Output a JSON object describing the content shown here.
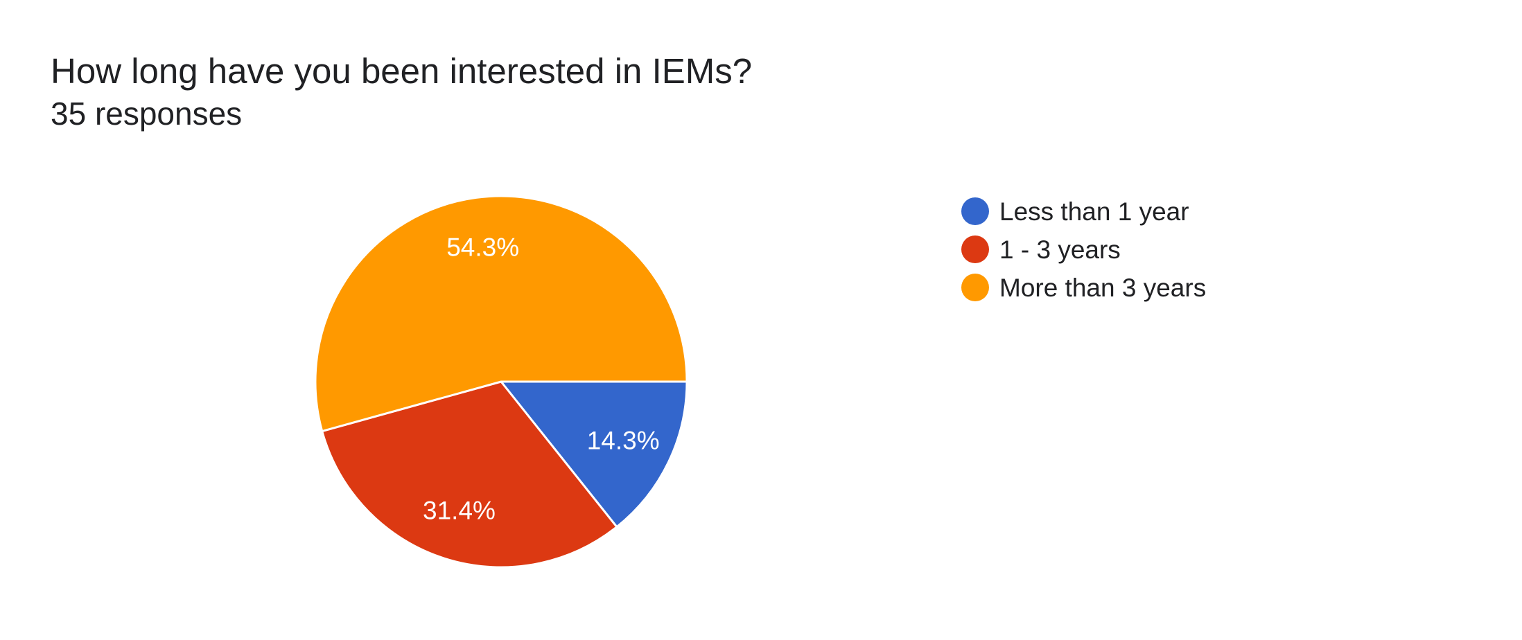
{
  "header": {
    "title": "How long have you been interested in IEMs?",
    "subtitle": "35 responses"
  },
  "chart_data": {
    "type": "pie",
    "title": "How long have you been interested in IEMs?",
    "subtitle": "35 responses",
    "responses_count": "35",
    "start_angle_deg": 90,
    "direction": "clockwise",
    "legend_position": "right",
    "background_color": "#ffffff",
    "slice_border_color": "#ffffff",
    "label_text_color": "#ffffff",
    "text_color": "#202124",
    "slices": [
      {
        "label": "Less than 1 year",
        "percent": 14.3,
        "percent_label": "14.3%",
        "color": "#3366CC"
      },
      {
        "label": "1 - 3 years",
        "percent": 31.4,
        "percent_label": "31.4%",
        "color": "#DC3912"
      },
      {
        "label": "More than 3 years",
        "percent": 54.3,
        "percent_label": "54.3%",
        "color": "#FF9900"
      }
    ]
  }
}
